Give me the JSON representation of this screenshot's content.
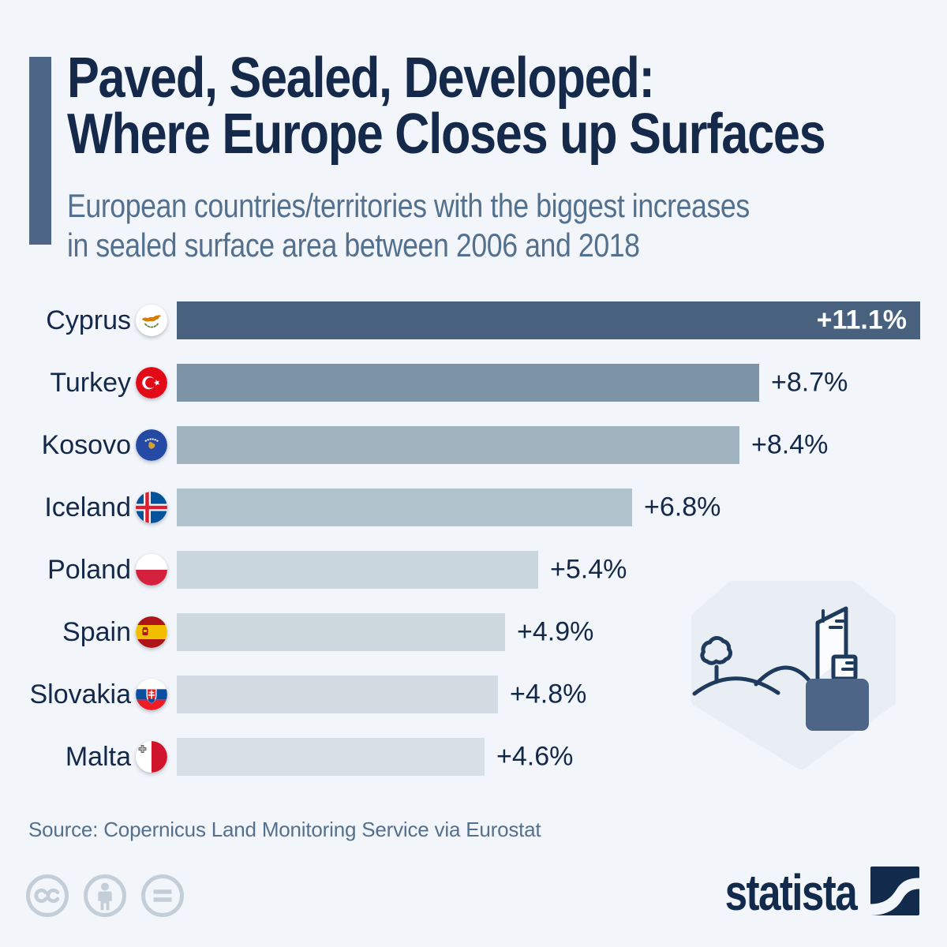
{
  "theme": {
    "background": "#f2f5f9",
    "accent_color": "#4d6687",
    "title_color": "#15294b",
    "muted_color": "#53708e",
    "text_color": "#14294a",
    "brand_color": "#122a4c",
    "license_icon_color": "#c4ced8"
  },
  "chart_data": {
    "type": "bar",
    "orientation": "horizontal",
    "title_lines": [
      "Paved, Sealed, Developed:",
      "Where Europe Closes up Surfaces"
    ],
    "subtitle_lines": [
      "European countries/territories with the biggest increases",
      "in sealed surface area between 2006 and 2018"
    ],
    "categories": [
      "Cyprus",
      "Turkey",
      "Kosovo",
      "Iceland",
      "Poland",
      "Spain",
      "Slovakia",
      "Malta"
    ],
    "values": [
      11.1,
      8.7,
      8.4,
      6.8,
      5.4,
      4.9,
      4.8,
      4.6
    ],
    "value_labels": [
      "+11.1%",
      "+8.7%",
      "+8.4%",
      "+6.8%",
      "+5.4%",
      "+4.9%",
      "+4.8%",
      "+4.6%"
    ],
    "unit": "%",
    "xlim": [
      0,
      11.1
    ],
    "grid": false,
    "legend": null,
    "inside_label_rows": [
      0
    ],
    "bar_colors": [
      "#47617f",
      "#7d94a6",
      "#a0b3bf",
      "#b1c4cd",
      "#c9d6dd",
      "#ced9df",
      "#d3dce2",
      "#d7e0e5"
    ]
  },
  "source": {
    "text": "Source: Copernicus Land Monitoring Service via Eurostat"
  },
  "branding": {
    "wordmark": "statista"
  },
  "license": {
    "icons": [
      "cc",
      "attribution",
      "no-derivatives"
    ]
  }
}
